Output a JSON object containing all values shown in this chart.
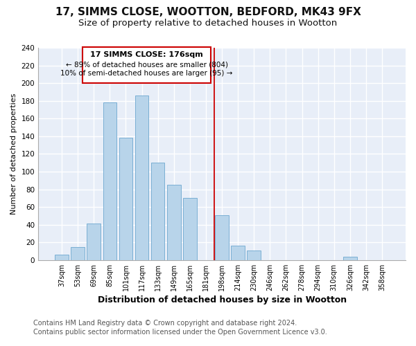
{
  "title": "17, SIMMS CLOSE, WOOTTON, BEDFORD, MK43 9FX",
  "subtitle": "Size of property relative to detached houses in Wootton",
  "xlabel": "Distribution of detached houses by size in Wootton",
  "ylabel": "Number of detached properties",
  "bar_labels": [
    "37sqm",
    "53sqm",
    "69sqm",
    "85sqm",
    "101sqm",
    "117sqm",
    "133sqm",
    "149sqm",
    "165sqm",
    "181sqm",
    "198sqm",
    "214sqm",
    "230sqm",
    "246sqm",
    "262sqm",
    "278sqm",
    "294sqm",
    "310sqm",
    "326sqm",
    "342sqm",
    "358sqm"
  ],
  "bar_values": [
    6,
    15,
    41,
    178,
    138,
    186,
    110,
    85,
    70,
    0,
    51,
    16,
    11,
    0,
    0,
    0,
    0,
    0,
    4,
    0,
    0
  ],
  "bar_color": "#b8d4ea",
  "bar_edge_color": "#7aafd4",
  "ylim": [
    0,
    240
  ],
  "yticks": [
    0,
    20,
    40,
    60,
    80,
    100,
    120,
    140,
    160,
    180,
    200,
    220,
    240
  ],
  "vline_x": 9.5,
  "vline_color": "#cc0000",
  "annotation_title": "17 SIMMS CLOSE: 176sqm",
  "annotation_line1": "← 89% of detached houses are smaller (804)",
  "annotation_line2": "10% of semi-detached houses are larger (95) →",
  "annotation_box_color": "#ffffff",
  "annotation_box_edge_color": "#cc0000",
  "footer_line1": "Contains HM Land Registry data © Crown copyright and database right 2024.",
  "footer_line2": "Contains public sector information licensed under the Open Government Licence v3.0.",
  "background_color": "#ffffff",
  "plot_bg_color": "#e8eef8",
  "grid_color": "#ffffff",
  "title_fontsize": 11,
  "subtitle_fontsize": 9.5,
  "xlabel_fontsize": 9,
  "ylabel_fontsize": 8,
  "footer_fontsize": 7
}
